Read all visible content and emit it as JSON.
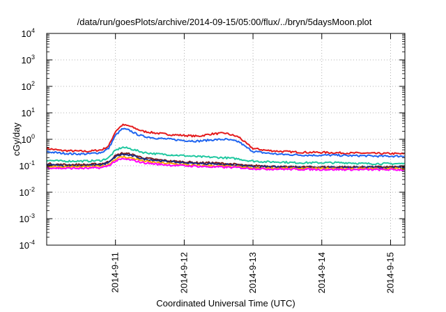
{
  "chart_data": {
    "type": "line",
    "title": "/data/run/goesPlots/archive/2014-09-15/05:00/flux/../bryn/5daysMoon.plot",
    "xlabel": "Coordinated Universal Time (UTC)",
    "ylabel": "cGy/day",
    "y_scale": "log",
    "ylim": [
      0.0001,
      10000
    ],
    "y_ticks": [
      {
        "base": "10",
        "exp": "-4"
      },
      {
        "base": "10",
        "exp": "-3"
      },
      {
        "base": "10",
        "exp": "-2"
      },
      {
        "base": "10",
        "exp": "-1"
      },
      {
        "base": "10",
        "exp": "0"
      },
      {
        "base": "10",
        "exp": "1"
      },
      {
        "base": "10",
        "exp": "2"
      },
      {
        "base": "10",
        "exp": "3"
      },
      {
        "base": "10",
        "exp": "4"
      }
    ],
    "xlim": [
      "2014-09-10T00:00",
      "2014-09-15T05:00"
    ],
    "x_ticks": [
      "2014-9-11",
      "2014-9-12",
      "2014-9-13",
      "2014-9-14",
      "2014-9-15"
    ],
    "grid": true,
    "x": [
      0,
      0.2,
      0.4,
      0.6,
      0.8,
      0.9,
      1.0,
      1.1,
      1.2,
      1.3,
      1.4,
      1.6,
      1.8,
      2.0,
      2.2,
      2.4,
      2.6,
      2.8,
      2.9,
      3.0,
      3.2,
      3.4,
      3.6,
      3.8,
      4.0,
      4.2,
      4.4,
      4.6,
      4.8,
      5.0,
      5.2
    ],
    "series": [
      {
        "color": "#e41a1c",
        "width": 2,
        "values": [
          0.45,
          0.38,
          0.36,
          0.35,
          0.4,
          0.55,
          2.0,
          3.5,
          3.2,
          2.5,
          2.0,
          1.7,
          1.5,
          1.4,
          1.3,
          1.6,
          1.7,
          1.2,
          0.7,
          0.45,
          0.38,
          0.35,
          0.33,
          0.32,
          0.32,
          0.31,
          0.3,
          0.3,
          0.29,
          0.29,
          0.28
        ]
      },
      {
        "color": "#1e64f0",
        "width": 2,
        "values": [
          0.34,
          0.3,
          0.28,
          0.28,
          0.32,
          0.45,
          1.4,
          2.5,
          2.2,
          1.6,
          1.3,
          1.1,
          1.0,
          0.9,
          0.85,
          0.95,
          1.0,
          0.8,
          0.5,
          0.35,
          0.3,
          0.27,
          0.26,
          0.25,
          0.25,
          0.25,
          0.24,
          0.24,
          0.23,
          0.23,
          0.23
        ]
      },
      {
        "color": "#20c8a0",
        "width": 2,
        "values": [
          0.16,
          0.15,
          0.15,
          0.15,
          0.16,
          0.2,
          0.38,
          0.5,
          0.45,
          0.38,
          0.32,
          0.28,
          0.26,
          0.24,
          0.22,
          0.21,
          0.2,
          0.18,
          0.16,
          0.15,
          0.14,
          0.14,
          0.13,
          0.13,
          0.13,
          0.13,
          0.13,
          0.12,
          0.12,
          0.12,
          0.12
        ]
      },
      {
        "color": "#7a1a1a",
        "width": 2,
        "values": [
          0.12,
          0.11,
          0.11,
          0.11,
          0.12,
          0.14,
          0.24,
          0.3,
          0.28,
          0.24,
          0.2,
          0.17,
          0.15,
          0.14,
          0.13,
          0.13,
          0.12,
          0.11,
          0.1,
          0.1,
          0.1,
          0.09,
          0.09,
          0.09,
          0.09,
          0.09,
          0.09,
          0.09,
          0.09,
          0.09,
          0.09
        ]
      },
      {
        "color": "#1a2a80",
        "width": 2,
        "values": [
          0.11,
          0.1,
          0.1,
          0.1,
          0.11,
          0.13,
          0.22,
          0.27,
          0.25,
          0.22,
          0.18,
          0.16,
          0.14,
          0.13,
          0.12,
          0.12,
          0.11,
          0.1,
          0.095,
          0.09,
          0.09,
          0.088,
          0.088,
          0.087,
          0.087,
          0.087,
          0.086,
          0.086,
          0.086,
          0.085,
          0.085
        ]
      },
      {
        "color": "#ffa500",
        "width": 2,
        "values": [
          0.095,
          0.09,
          0.09,
          0.09,
          0.095,
          0.11,
          0.18,
          0.22,
          0.2,
          0.18,
          0.15,
          0.13,
          0.12,
          0.11,
          0.1,
          0.1,
          0.095,
          0.09,
          0.085,
          0.08,
          0.08,
          0.08,
          0.078,
          0.078,
          0.078,
          0.078,
          0.077,
          0.077,
          0.077,
          0.077,
          0.076
        ]
      },
      {
        "color": "#ff00ff",
        "width": 2,
        "values": [
          0.085,
          0.08,
          0.08,
          0.08,
          0.085,
          0.1,
          0.15,
          0.18,
          0.17,
          0.15,
          0.13,
          0.115,
          0.105,
          0.1,
          0.095,
          0.09,
          0.088,
          0.085,
          0.08,
          0.078,
          0.075,
          0.075,
          0.073,
          0.073,
          0.072,
          0.072,
          0.072,
          0.071,
          0.071,
          0.071,
          0.07
        ]
      }
    ]
  }
}
